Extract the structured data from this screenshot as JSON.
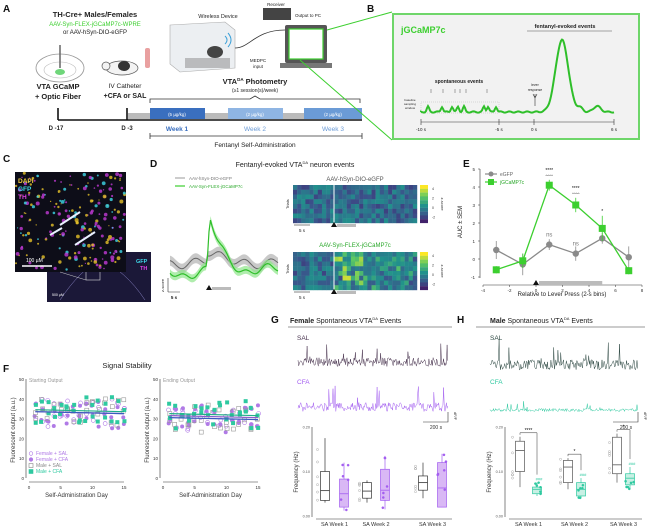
{
  "panel_labels": [
    "A",
    "B",
    "C",
    "D",
    "E",
    "F",
    "G",
    "H"
  ],
  "colors": {
    "green": "#3ccf2f",
    "egfp_gray": "#8a8a8a",
    "week1": "#3a6fbf",
    "week2": "#8fb5e3",
    "female_purple": "#b07ae6",
    "female_sal": "#4a3550",
    "male_teal": "#2ec9a0",
    "male_sal": "#2f4a44"
  },
  "A": {
    "subjects": "TH-Cre+ Males/Females",
    "virus1": "AAV-Syn-FLEX-jGCaMP7c-WPRE",
    "virus2": "or AAV-hSyn-DIO-eGFP",
    "surgery1": "VTA GCaMP",
    "surgery2": "+ Optic Fiber",
    "catheter1": "IV Catheter",
    "catheter2": "+CFA or SAL",
    "wireless": "Wireless Device",
    "receiver": "Receiver",
    "output": "Output to PC",
    "medpc1": "MEDPC",
    "medpc2": "input",
    "photometry_main": "VTA",
    "photometry_sup": "DA",
    "photometry_rest": " Photometry",
    "photometry_sub": "(≥1 session(s)/week)",
    "day1": "D -17",
    "day2": "D -3",
    "weeks": [
      {
        "label": "Week 1",
        "dose": "(5 µg/kg)"
      },
      {
        "label": "Week 2",
        "dose": "(2 µg/kg)"
      },
      {
        "label": "Week 3",
        "dose": "(2 µg/kg)"
      }
    ],
    "sa_label": "Fentanyl Self-Administration"
  },
  "B": {
    "title": "jGCaMP7c",
    "evoked": "fentanyl-evoked events",
    "spont": "spontaneous events",
    "lever1": "lever",
    "lever2": "response",
    "baseline1": "baseline",
    "baseline2": "sampling",
    "baseline3": "window",
    "ticks": [
      "-10 s",
      "-5 s",
      "0 s",
      "6 s"
    ]
  },
  "C": {
    "dapi": "DAPI",
    "gfp": "GFP",
    "th": "TH",
    "scale1": "100 µM",
    "scale2": "500 µM",
    "inset_gfp": "GFP",
    "inset_th": "TH"
  },
  "D": {
    "title_main": "Fentanyl-evoked VTA",
    "title_sup": "DA",
    "title_rest": " neuron events",
    "legend": [
      "AAV-hSyn-DIO-eGFP",
      "AAV-Syn-FLEX-jGCaMP7c"
    ],
    "ylabel": "z-score",
    "scale": "5 s",
    "heat_titles": [
      "AAV-hSyn-DIO-eGFP",
      "AAV-Syn-FLEX-jGCaMP7c"
    ],
    "heat_ylabel": "Trials",
    "cbar_label": "z-score",
    "cbar_ticks": [
      "4",
      "2",
      "0",
      "-2"
    ]
  },
  "chart_data": [
    {
      "panel": "E",
      "type": "line",
      "xlabel": "Relative to Lever Press (2-s bins)",
      "ylabel": "AUC ± SEM",
      "xlim": [
        -4,
        8
      ],
      "ylim": [
        -1,
        5
      ],
      "xticks": [
        "-4",
        "-2",
        "0",
        "2",
        "4",
        "6",
        "8"
      ],
      "yticks": [
        "5",
        "4",
        "3",
        "2",
        "1",
        "0",
        "-1"
      ],
      "x": [
        -3,
        -1,
        1,
        3,
        5,
        7
      ],
      "legend_position": "top-left",
      "series": [
        {
          "name": "eGFP",
          "color": "#8a8a8a",
          "values": [
            0.5,
            -0.3,
            0.8,
            0.3,
            1.15,
            0.1
          ],
          "err": [
            0.5,
            0.6,
            0.3,
            0.4,
            0.3,
            0.6
          ]
        },
        {
          "name": "jGCaMP7c",
          "color": "#3ccf2f",
          "values": [
            -0.6,
            -0.1,
            4.1,
            3.0,
            1.7,
            -0.65
          ],
          "err": [
            0.2,
            0.4,
            0.3,
            0.4,
            0.7,
            0.2
          ]
        }
      ],
      "annotations": [
        {
          "x": 1,
          "text": "****",
          "text2": "^^^^"
        },
        {
          "x": 3,
          "text": "****",
          "text2": "^^^^"
        },
        {
          "x": 5,
          "text": "*",
          "text2": ""
        },
        {
          "x": 1,
          "text": "ns",
          "below": true
        },
        {
          "x": 3,
          "text": "ns",
          "below": true
        }
      ]
    },
    {
      "panel": "F",
      "type": "scatter",
      "title": "Signal Stability",
      "subplots": [
        {
          "subtitle": "Starting Output"
        },
        {
          "subtitle": "Ending Output"
        }
      ],
      "xlabel": "Self-Administration Day",
      "ylabel": "Fluorescent output (a.u.)",
      "xlim": [
        0,
        15
      ],
      "ylim": [
        0,
        50
      ],
      "xticks": [
        "0",
        "5",
        "10",
        "15"
      ],
      "yticks": [
        "50",
        "40",
        "30",
        "20",
        "10",
        "0"
      ],
      "legend": [
        "Female + SAL",
        "Female + CFA",
        "Male + SAL",
        "Male + CFA"
      ],
      "legend_position": "bottom-left",
      "group_means_start": [
        33,
        32,
        33,
        34
      ],
      "group_means_end": [
        31,
        30,
        30,
        32
      ]
    },
    {
      "panel": "G",
      "type": "box",
      "title_bold": "Female",
      "title_rest": " Spontaneous VTA",
      "title_sup": "DA",
      "title_end": " Events",
      "trace_labels": [
        "SAL",
        "CFA"
      ],
      "scale": "200 s",
      "scale_y": "dF/F",
      "ylabel": "Frequency (Hz)",
      "ylim": [
        0,
        0.2
      ],
      "yticks": [
        "0.20",
        "0.10",
        "0.00"
      ],
      "categories": [
        "SA Week 1",
        "SA Week 2",
        "SA Week 3"
      ],
      "series": [
        {
          "name": "SAL",
          "boxes": [
            [
              0.03,
              0.035,
              0.057,
              0.1,
              0.175
            ],
            [
              0.03,
              0.04,
              0.056,
              0.075,
              0.08
            ],
            [
              0.04,
              0.058,
              0.075,
              0.09,
              0.12
            ]
          ]
        },
        {
          "name": "CFA",
          "boxes": [
            [
              0.012,
              0.02,
              0.05,
              0.083,
              0.12
            ],
            [
              0.015,
              0.035,
              0.058,
              0.105,
              0.135
            ],
            [
              0.02,
              0.02,
              0.063,
              0.12,
              0.14
            ]
          ]
        }
      ]
    },
    {
      "panel": "H",
      "type": "box",
      "title_bold": "Male",
      "title_rest": " Spontaneous VTA",
      "title_sup": "DA",
      "title_end": " Events",
      "trace_labels": [
        "SAL",
        "CFA"
      ],
      "scale": "200 s",
      "scale_y": "dF/F",
      "ylabel": "Frequency (Hz)",
      "ylim": [
        0,
        0.2
      ],
      "yticks": [
        "0.20",
        "0.10",
        "0.00"
      ],
      "categories": [
        "SA Week 1",
        "SA Week 2",
        "SA Week 3"
      ],
      "series": [
        {
          "name": "SAL",
          "boxes": [
            [
              0.065,
              0.1,
              0.147,
              0.168,
              0.178
            ],
            [
              0.06,
              0.075,
              0.11,
              0.125,
              0.13
            ],
            [
              0.075,
              0.095,
              0.115,
              0.177,
              0.185
            ]
          ]
        },
        {
          "name": "CFA",
          "boxes": [
            [
              0.045,
              0.05,
              0.06,
              0.065,
              0.075
            ],
            [
              0.04,
              0.045,
              0.06,
              0.075,
              0.085
            ],
            [
              0.06,
              0.07,
              0.085,
              0.095,
              0.11
            ]
          ]
        }
      ],
      "sig": [
        "****",
        "*",
        "*"
      ],
      "cfa_marks": [
        "###",
        "###",
        "###"
      ]
    }
  ]
}
